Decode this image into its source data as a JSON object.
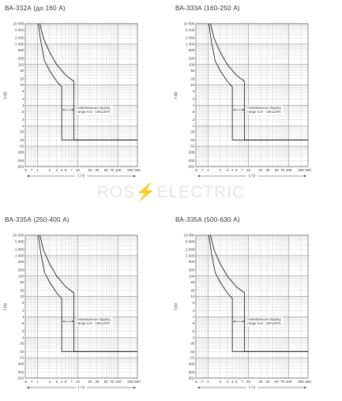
{
  "watermark": {
    "left": "ROS",
    "bolt": "⚡",
    "right": "ELECTRIC"
  },
  "chart_data": [
    {
      "type": "line",
      "title": "ВА-332А (до 160 А)",
      "xlabel": "I / Ir",
      "ylabel": "t (s)",
      "xscale": "log",
      "yscale": "log",
      "xlim": [
        0.5,
        300
      ],
      "ylim": [
        0.001,
        10000
      ],
      "grid": true,
      "x_ticks": [
        0.5,
        0.7,
        1,
        2,
        3,
        4,
        5,
        7,
        10,
        20,
        30,
        50,
        70,
        100,
        200,
        300
      ],
      "x_tick_labels": [
        ".5",
        ".7",
        "1",
        "2",
        "3",
        "4",
        "5",
        "7",
        "10",
        "20",
        "30",
        "50",
        "70",
        "100",
        "200",
        "300"
      ],
      "y_ticks": [
        10000,
        5000,
        2000,
        1000,
        500,
        200,
        100,
        50,
        20,
        10,
        5,
        2,
        1,
        0.5,
        0.2,
        0.1,
        0.05,
        0.02,
        0.01,
        0.005,
        0.002,
        0.001
      ],
      "y_tick_labels": [
        "10 000",
        "5 000",
        "2 000",
        "1 000",
        "500",
        "200",
        "100",
        "50",
        "20",
        "10",
        "5",
        "2",
        "1",
        ".5",
        ".2",
        ".1",
        ".05",
        ".02",
        ".01",
        ".005",
        ".002",
        ".001"
      ],
      "annotation": [
        "Instantaneous tripping",
        "range Ii=5 - 10In±20%"
      ],
      "series": [
        {
          "x": [
            1.15,
            1.4,
            2,
            3,
            5,
            8,
            8,
            8.5,
            300
          ],
          "y": [
            10000,
            2000,
            400,
            100,
            30,
            15,
            0.02,
            0.02,
            0.02
          ]
        },
        {
          "x": [
            1.05,
            1.2,
            1.5,
            2,
            3,
            4,
            4,
            4.5,
            300
          ],
          "y": [
            10000,
            1500,
            150,
            50,
            15,
            8,
            0.02,
            0.02,
            0.02
          ]
        }
      ]
    },
    {
      "type": "line",
      "title": "ВА-333А (160-250 А)",
      "xlabel": "I / Ir",
      "ylabel": "t (s)",
      "xscale": "log",
      "yscale": "log",
      "xlim": [
        0.5,
        300
      ],
      "ylim": [
        0.001,
        10000
      ],
      "grid": true,
      "x_ticks": [
        0.5,
        0.7,
        1,
        2,
        3,
        4,
        5,
        7,
        10,
        20,
        30,
        50,
        70,
        100,
        200,
        300
      ],
      "x_tick_labels": [
        ".5",
        ".7",
        "1",
        "2",
        "3",
        "4",
        "5",
        "7",
        "10",
        "20",
        "30",
        "50",
        "70",
        "100",
        "200",
        "300"
      ],
      "y_ticks": [
        10000,
        5000,
        2000,
        1000,
        500,
        200,
        100,
        50,
        20,
        10,
        5,
        2,
        1,
        0.5,
        0.2,
        0.1,
        0.05,
        0.02,
        0.01,
        0.005,
        0.002,
        0.001
      ],
      "y_tick_labels": [
        "10 000",
        "5 000",
        "2 000",
        "1 000",
        "500",
        "200",
        "100",
        "50",
        "20",
        "10",
        "5",
        "2",
        "1",
        ".5",
        ".2",
        ".1",
        ".05",
        ".02",
        ".01",
        ".005",
        ".002",
        ".001"
      ],
      "annotation": [
        "Instantaneous tripping",
        "range Ii=5 - 10In±20%"
      ],
      "series": [
        {
          "x": [
            1.15,
            1.4,
            2,
            3,
            5,
            8,
            8,
            8.5,
            300
          ],
          "y": [
            10000,
            2000,
            400,
            100,
            30,
            15,
            0.02,
            0.02,
            0.02
          ]
        },
        {
          "x": [
            1.05,
            1.2,
            1.5,
            2,
            3,
            4,
            4,
            4.5,
            300
          ],
          "y": [
            10000,
            1500,
            150,
            50,
            15,
            8,
            0.02,
            0.02,
            0.02
          ]
        }
      ]
    },
    {
      "type": "line",
      "title": "ВА-335А (250-400 А)",
      "xlabel": "I / Ir",
      "ylabel": "t (s)",
      "xscale": "log",
      "yscale": "log",
      "xlim": [
        0.5,
        300
      ],
      "ylim": [
        0.001,
        10000
      ],
      "grid": true,
      "x_ticks": [
        0.5,
        0.7,
        1,
        2,
        3,
        4,
        5,
        7,
        10,
        20,
        30,
        50,
        70,
        100,
        200,
        300
      ],
      "x_tick_labels": [
        ".5",
        ".7",
        "1",
        "2",
        "3",
        "4",
        "5",
        "7",
        "10",
        "20",
        "30",
        "50",
        "70",
        "100",
        "200",
        "300"
      ],
      "y_ticks": [
        10000,
        5000,
        2000,
        1000,
        500,
        200,
        100,
        50,
        20,
        10,
        5,
        2,
        1,
        0.5,
        0.2,
        0.1,
        0.05,
        0.02,
        0.01,
        0.005,
        0.002,
        0.001
      ],
      "y_tick_labels": [
        "10 000",
        "5 000",
        "2 000",
        "1 000",
        "500",
        "200",
        "100",
        "50",
        "20",
        "10",
        "5",
        "2",
        "1",
        ".5",
        ".2",
        ".1",
        ".05",
        ".02",
        ".01",
        ".005",
        ".002",
        ".001"
      ],
      "annotation": [
        "Instantaneous tripping",
        "range Ii=5 - 10In±20%"
      ],
      "series": [
        {
          "x": [
            1.15,
            1.4,
            2,
            3,
            5,
            8,
            8,
            8.5,
            300
          ],
          "y": [
            10000,
            2000,
            400,
            100,
            30,
            15,
            0.02,
            0.02,
            0.02
          ]
        },
        {
          "x": [
            1.05,
            1.2,
            1.5,
            2,
            3,
            4,
            4,
            4.5,
            300
          ],
          "y": [
            10000,
            1500,
            150,
            50,
            15,
            8,
            0.02,
            0.02,
            0.02
          ]
        }
      ]
    },
    {
      "type": "line",
      "title": "ВА-335А (500-630 А)",
      "xlabel": "I / Ir",
      "ylabel": "t (s)",
      "xscale": "log",
      "yscale": "log",
      "xlim": [
        0.5,
        300
      ],
      "ylim": [
        0.001,
        10000
      ],
      "grid": true,
      "x_ticks": [
        0.5,
        0.7,
        1,
        2,
        3,
        4,
        5,
        7,
        10,
        20,
        30,
        50,
        70,
        100,
        200,
        300
      ],
      "x_tick_labels": [
        ".5",
        ".7",
        "1",
        "2",
        "3",
        "4",
        "5",
        "7",
        "10",
        "20",
        "30",
        "50",
        "70",
        "100",
        "200",
        "300"
      ],
      "y_ticks": [
        10000,
        5000,
        2000,
        1000,
        500,
        200,
        100,
        50,
        20,
        10,
        5,
        2,
        1,
        0.5,
        0.2,
        0.1,
        0.05,
        0.02,
        0.01,
        0.005,
        0.002,
        0.001
      ],
      "y_tick_labels": [
        "10 000",
        "5 000",
        "2 000",
        "1 000",
        "500",
        "200",
        "100",
        "50",
        "20",
        "10",
        "5",
        "2",
        "1",
        ".5",
        ".2",
        ".1",
        ".05",
        ".02",
        ".01",
        ".005",
        ".002",
        ".001"
      ],
      "annotation": [
        "Instantaneous tripping",
        "range Ii=5 - 10In±20%"
      ],
      "series": [
        {
          "x": [
            1.15,
            1.4,
            2,
            3,
            5,
            8,
            8,
            8.5,
            300
          ],
          "y": [
            10000,
            2000,
            400,
            100,
            30,
            15,
            0.02,
            0.02,
            0.02
          ]
        },
        {
          "x": [
            1.05,
            1.2,
            1.5,
            2,
            3,
            4,
            4,
            4.5,
            300
          ],
          "y": [
            10000,
            1500,
            150,
            50,
            15,
            8,
            0.02,
            0.02,
            0.02
          ]
        }
      ]
    }
  ]
}
